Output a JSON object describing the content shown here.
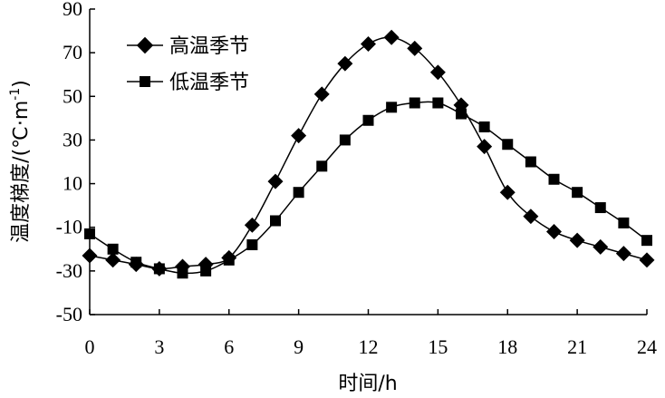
{
  "chart_data": {
    "type": "line",
    "xlabel": "时间/h",
    "ylabel_main": "温度梯度/(℃·m",
    "ylabel_sup": "-1",
    "ylabel_close": ")",
    "xlim": [
      0,
      24
    ],
    "ylim": [
      -50,
      90
    ],
    "xticks": [
      0,
      3,
      6,
      9,
      12,
      15,
      18,
      21,
      24
    ],
    "yticks": [
      -50,
      -30,
      -10,
      10,
      30,
      50,
      70,
      90
    ],
    "grid": false,
    "legend_position": "top-left",
    "x": [
      0,
      1,
      2,
      3,
      4,
      5,
      6,
      7,
      8,
      9,
      10,
      11,
      12,
      13,
      14,
      15,
      16,
      17,
      18,
      19,
      20,
      21,
      22,
      23,
      24
    ],
    "series": [
      {
        "name": "高温季节",
        "marker": "diamond",
        "values": [
          -23,
          -25,
          -27,
          -29,
          -28,
          -27,
          -24,
          -9,
          11,
          32,
          51,
          65,
          74,
          77,
          72,
          61,
          46,
          27,
          6,
          -5,
          -12,
          -16,
          -19,
          -22,
          -25
        ]
      },
      {
        "name": "低温季节",
        "marker": "square",
        "values": [
          -13,
          -20,
          -26,
          -29,
          -31,
          -30,
          -25,
          -18,
          -7,
          6,
          18,
          30,
          39,
          45,
          47,
          47,
          42,
          36,
          28,
          20,
          12,
          6,
          -1,
          -8,
          -16
        ]
      }
    ]
  }
}
